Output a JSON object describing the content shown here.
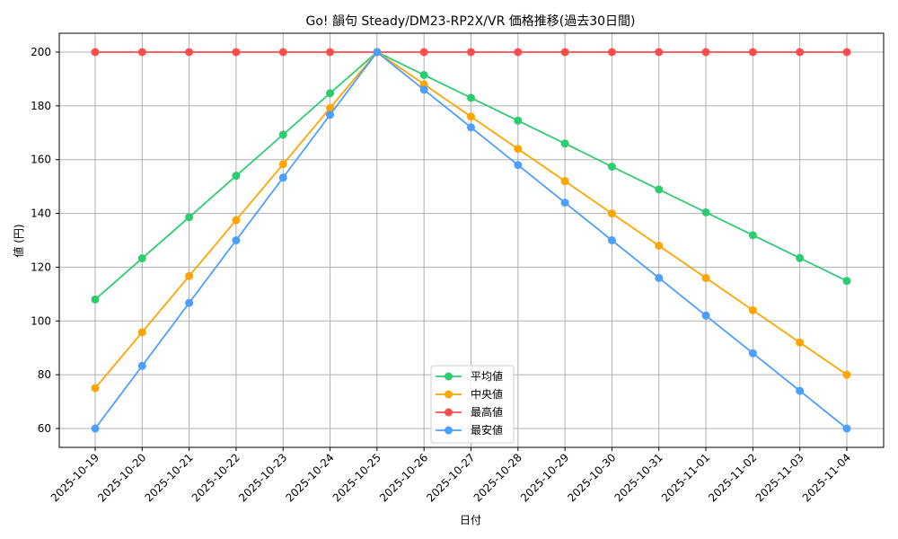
{
  "chart_data": {
    "type": "line",
    "title": "Go! 韻句 Steady/DM23-RP2X/VR 価格推移(過去30日間)",
    "xlabel": "日付",
    "ylabel": "値 (円)",
    "ylim": [
      53,
      207
    ],
    "yticks": [
      60,
      80,
      100,
      120,
      140,
      160,
      180,
      200
    ],
    "grid": true,
    "legend_position": "lower center",
    "x": [
      "2025-10-19",
      "2025-10-20",
      "2025-10-21",
      "2025-10-22",
      "2025-10-23",
      "2025-10-24",
      "2025-10-25",
      "2025-10-26",
      "2025-10-27",
      "2025-10-28",
      "2025-10-29",
      "2025-10-30",
      "2025-10-31",
      "2025-11-01",
      "2025-11-02",
      "2025-11-03",
      "2025-11-04"
    ],
    "series": [
      {
        "name": "平均値",
        "color": "#2ecc71",
        "values": [
          108,
          123.3,
          138.6,
          154,
          169.3,
          184.7,
          200,
          191.5,
          183,
          174.5,
          166,
          157.4,
          148.9,
          140.4,
          131.9,
          123.4,
          114.9
        ]
      },
      {
        "name": "中央値",
        "color": "#ffa500",
        "values": [
          75,
          95.8,
          116.7,
          137.5,
          158.3,
          179.2,
          200,
          188,
          176,
          164,
          152,
          140,
          128,
          116,
          104,
          92,
          80
        ]
      },
      {
        "name": "最高値",
        "color": "#ff4d4d",
        "values": [
          200,
          200,
          200,
          200,
          200,
          200,
          200,
          200,
          200,
          200,
          200,
          200,
          200,
          200,
          200,
          200,
          200
        ]
      },
      {
        "name": "最安値",
        "color": "#4d9fff",
        "values": [
          60,
          83.3,
          106.7,
          130,
          153.3,
          176.7,
          200,
          186,
          172,
          158,
          144,
          130,
          116,
          102,
          88,
          74,
          60
        ]
      }
    ]
  }
}
